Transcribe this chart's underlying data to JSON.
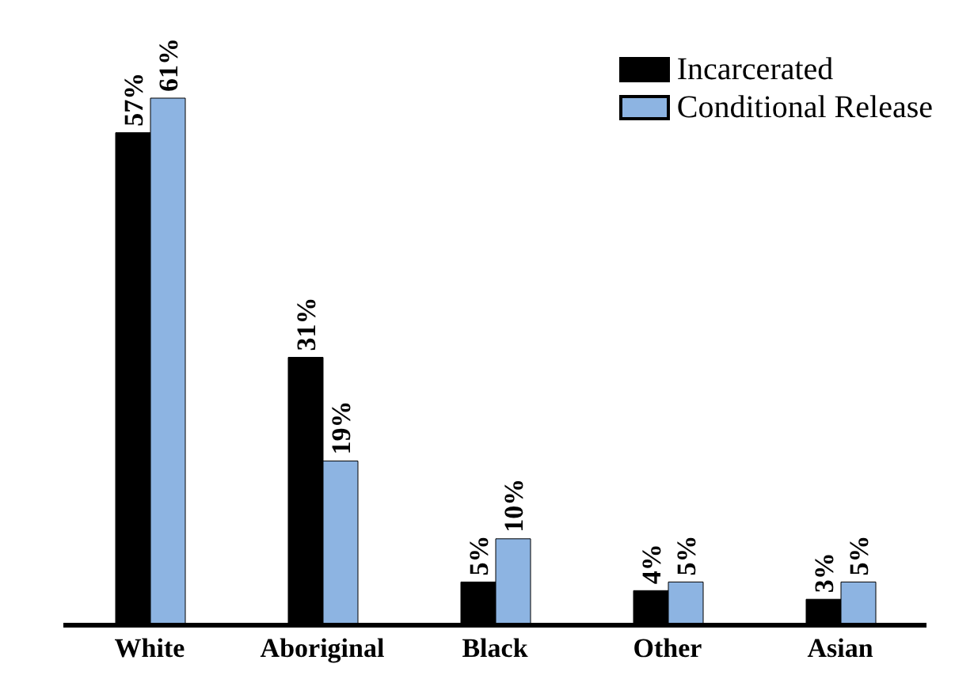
{
  "chart_data": {
    "type": "bar",
    "categories": [
      "White",
      "Aboriginal",
      "Black",
      "Other",
      "Asian"
    ],
    "series": [
      {
        "name": "Incarcerated",
        "color": "#000000",
        "values": [
          57,
          31,
          5,
          4,
          3
        ],
        "value_labels": [
          "57%",
          "31%",
          "5%",
          "4%",
          "3%"
        ]
      },
      {
        "name": "Conditional Release",
        "color": "#8db4e2",
        "values": [
          61,
          19,
          10,
          5,
          5
        ],
        "value_labels": [
          "61%",
          "19%",
          "10%",
          "5%",
          "5%"
        ]
      }
    ],
    "legend": "top right"
  }
}
